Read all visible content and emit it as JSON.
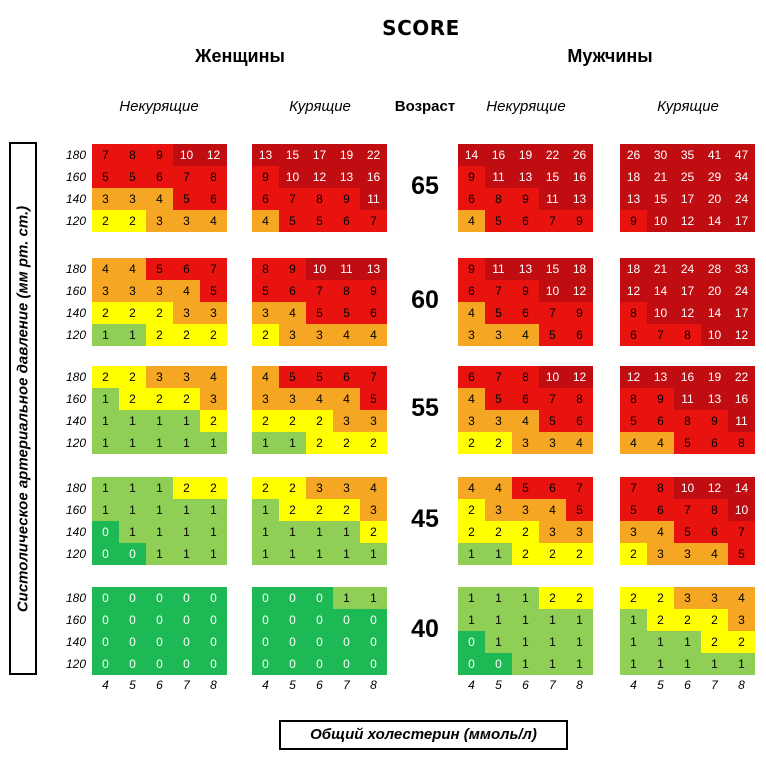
{
  "title": "SCORE",
  "women_label": "Женщины",
  "men_label": "Мужчины",
  "nonsmoking_label": "Некурящие",
  "smoking_label": "Курящие",
  "age_header": "Возраст",
  "y_axis_label": "Систолическое артериальное давление (мм рт. ст.)",
  "x_axis_label": "Общий холестерин (ммоль/л)",
  "colors": {
    "dark_green": "#1db954",
    "light_green": "#8fcf55",
    "yellow": "#ffff00",
    "orange": "#f5a623",
    "red": "#e8130f",
    "dark_red": "#c00d12"
  },
  "chart_data": {
    "type": "heatmap",
    "cholesterol": [
      "4",
      "5",
      "6",
      "7",
      "8"
    ],
    "systolic_bp": [
      "180",
      "160",
      "140",
      "120"
    ],
    "ages": [
      "65",
      "60",
      "55",
      "45",
      "40"
    ],
    "panels": [
      {
        "sex": "women",
        "smoking": "nonsmoking",
        "values": [
          [
            [
              7,
              8,
              9,
              10,
              12
            ],
            [
              5,
              5,
              6,
              7,
              8
            ],
            [
              3,
              3,
              4,
              5,
              6
            ],
            [
              2,
              2,
              3,
              3,
              4
            ]
          ],
          [
            [
              4,
              4,
              5,
              6,
              7
            ],
            [
              3,
              3,
              3,
              4,
              5
            ],
            [
              2,
              2,
              2,
              3,
              3
            ],
            [
              1,
              1,
              2,
              2,
              2
            ]
          ],
          [
            [
              2,
              2,
              3,
              3,
              4
            ],
            [
              1,
              2,
              2,
              2,
              3
            ],
            [
              1,
              1,
              1,
              1,
              2
            ],
            [
              1,
              1,
              1,
              1,
              1
            ]
          ],
          [
            [
              1,
              1,
              1,
              2,
              2
            ],
            [
              1,
              1,
              1,
              1,
              1
            ],
            [
              0,
              1,
              1,
              1,
              1
            ],
            [
              0,
              0,
              1,
              1,
              1
            ]
          ],
          [
            [
              0,
              0,
              0,
              0,
              0
            ],
            [
              0,
              0,
              0,
              0,
              0
            ],
            [
              0,
              0,
              0,
              0,
              0
            ],
            [
              0,
              0,
              0,
              0,
              0
            ]
          ]
        ]
      },
      {
        "sex": "women",
        "smoking": "smoking",
        "values": [
          [
            [
              13,
              15,
              17,
              19,
              22
            ],
            [
              9,
              10,
              12,
              13,
              16
            ],
            [
              6,
              7,
              8,
              9,
              11
            ],
            [
              4,
              5,
              5,
              6,
              7
            ]
          ],
          [
            [
              8,
              9,
              10,
              11,
              13
            ],
            [
              5,
              6,
              7,
              8,
              9
            ],
            [
              3,
              4,
              5,
              5,
              6
            ],
            [
              2,
              3,
              3,
              4,
              4
            ]
          ],
          [
            [
              4,
              5,
              5,
              6,
              7
            ],
            [
              3,
              3,
              4,
              4,
              5
            ],
            [
              2,
              2,
              2,
              3,
              3
            ],
            [
              1,
              1,
              2,
              2,
              2
            ]
          ],
          [
            [
              2,
              2,
              3,
              3,
              4
            ],
            [
              1,
              2,
              2,
              2,
              3
            ],
            [
              1,
              1,
              1,
              1,
              2
            ],
            [
              1,
              1,
              1,
              1,
              1
            ]
          ],
          [
            [
              0,
              0,
              0,
              1,
              1
            ],
            [
              0,
              0,
              0,
              0,
              0
            ],
            [
              0,
              0,
              0,
              0,
              0
            ],
            [
              0,
              0,
              0,
              0,
              0
            ]
          ]
        ]
      },
      {
        "sex": "men",
        "smoking": "nonsmoking",
        "values": [
          [
            [
              14,
              16,
              19,
              22,
              26
            ],
            [
              9,
              11,
              13,
              15,
              16
            ],
            [
              6,
              8,
              9,
              11,
              13
            ],
            [
              4,
              5,
              6,
              7,
              9
            ]
          ],
          [
            [
              9,
              11,
              13,
              15,
              18
            ],
            [
              6,
              7,
              9,
              10,
              12
            ],
            [
              4,
              5,
              6,
              7,
              9
            ],
            [
              3,
              3,
              4,
              5,
              6
            ]
          ],
          [
            [
              6,
              7,
              8,
              10,
              12
            ],
            [
              4,
              5,
              6,
              7,
              8
            ],
            [
              3,
              3,
              4,
              5,
              6
            ],
            [
              2,
              2,
              3,
              3,
              4
            ]
          ],
          [
            [
              4,
              4,
              5,
              6,
              7
            ],
            [
              2,
              3,
              3,
              4,
              5
            ],
            [
              2,
              2,
              2,
              3,
              3
            ],
            [
              1,
              1,
              2,
              2,
              2
            ]
          ],
          [
            [
              1,
              1,
              1,
              2,
              2
            ],
            [
              1,
              1,
              1,
              1,
              1
            ],
            [
              0,
              1,
              1,
              1,
              1
            ],
            [
              0,
              0,
              1,
              1,
              1
            ]
          ]
        ]
      },
      {
        "sex": "men",
        "smoking": "smoking",
        "values": [
          [
            [
              26,
              30,
              35,
              41,
              47
            ],
            [
              18,
              21,
              25,
              29,
              34
            ],
            [
              13,
              15,
              17,
              20,
              24
            ],
            [
              9,
              10,
              12,
              14,
              17
            ]
          ],
          [
            [
              18,
              21,
              24,
              28,
              33
            ],
            [
              12,
              14,
              17,
              20,
              24
            ],
            [
              8,
              10,
              12,
              14,
              17
            ],
            [
              6,
              7,
              8,
              10,
              12
            ]
          ],
          [
            [
              12,
              13,
              16,
              19,
              22
            ],
            [
              8,
              9,
              11,
              13,
              16
            ],
            [
              5,
              6,
              8,
              9,
              11
            ],
            [
              4,
              4,
              5,
              6,
              8
            ]
          ],
          [
            [
              7,
              8,
              10,
              12,
              14
            ],
            [
              5,
              6,
              7,
              8,
              10
            ],
            [
              3,
              4,
              5,
              6,
              7
            ],
            [
              2,
              3,
              3,
              4,
              5
            ]
          ],
          [
            [
              2,
              2,
              3,
              3,
              4
            ],
            [
              1,
              2,
              2,
              2,
              3
            ],
            [
              1,
              1,
              1,
              2,
              2
            ],
            [
              1,
              1,
              1,
              1,
              1
            ]
          ]
        ]
      }
    ]
  }
}
